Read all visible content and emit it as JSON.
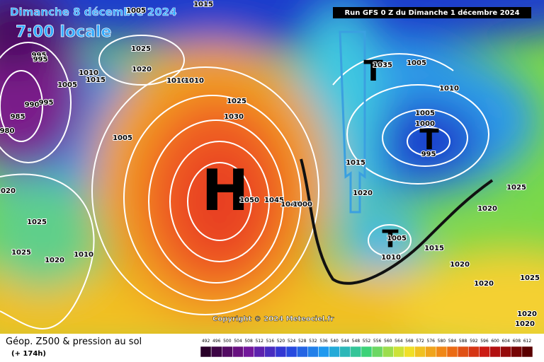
{
  "header": {
    "date": "Dimanche 8 décembre 2024",
    "time": "7:00 locale",
    "run": "Run GFS 0 Z du Dimanche 1 décembre 2024"
  },
  "systems": [
    "H",
    "T",
    "T",
    "T"
  ],
  "isobars": [
    "1025",
    "1020",
    "1010",
    "1015",
    "1005",
    "995",
    "995",
    "990",
    "995",
    "985",
    "980",
    "1020",
    "1025",
    "1025",
    "1020",
    "1010",
    "1010",
    "1010",
    "1025",
    "1030",
    "1005",
    "1050",
    "1045",
    "1040",
    "1035",
    "1000",
    "1005",
    "1010",
    "1005",
    "1000",
    "995",
    "1015",
    "1020",
    "1025",
    "1020",
    "1005",
    "1010",
    "1015",
    "1020",
    "1020",
    "1025",
    "1020",
    "1020",
    "1005",
    "1015"
  ],
  "copyright": "Copyright © 2024 Meteociel.fr",
  "legend": {
    "title": "Géop. Z500 & pression au sol",
    "lead": "(+ 174h)",
    "scale": [
      492,
      496,
      500,
      504,
      508,
      512,
      516,
      520,
      524,
      528,
      532,
      536,
      540,
      544,
      548,
      552,
      556,
      560,
      564,
      568,
      572,
      576,
      580,
      584,
      588,
      592,
      596,
      600,
      604,
      608,
      612
    ]
  }
}
